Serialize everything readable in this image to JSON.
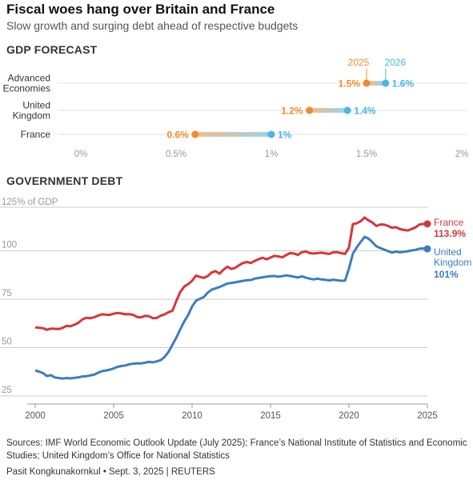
{
  "title": "Fiscal woes hang over Britain and France",
  "subtitle": "Slow growth and surging debt ahead of respective budgets",
  "colors": {
    "y2025": "#f08c2c",
    "y2026": "#4ab5e6",
    "france": "#d8353a",
    "uk": "#3b7dbf",
    "grid": "#cccccc",
    "axis": "#999999"
  },
  "chart_data": [
    {
      "type": "dumbbell",
      "title": "GDP FORECAST",
      "series_labels": [
        "2025",
        "2026"
      ],
      "categories": [
        "Advanced\nEconomies",
        "United\nKingdom",
        "France"
      ],
      "series": [
        {
          "name": "2025",
          "values": [
            1.5,
            1.2,
            0.6
          ]
        },
        {
          "name": "2026",
          "values": [
            1.6,
            1.4,
            1.0
          ]
        }
      ],
      "value_labels_2025": [
        "1.5%",
        "1.2%",
        "0.6%"
      ],
      "value_labels_2026": [
        "1.6%",
        "1.4%",
        "1%"
      ],
      "xlim": [
        0,
        2
      ],
      "x_ticks": [
        0,
        0.5,
        1,
        1.5,
        2
      ],
      "x_tick_labels": [
        "0%",
        "0.5%",
        "1%",
        "1.5%",
        "2%"
      ],
      "grid": true
    },
    {
      "type": "line",
      "title": "GOVERNMENT DEBT",
      "ylabel": "125% of GDP",
      "ylim": [
        25,
        125
      ],
      "xlim": [
        2000,
        2025
      ],
      "y_ticks": [
        25,
        50,
        75,
        100
      ],
      "y_tick_labels": [
        "25",
        "50",
        "75",
        "100"
      ],
      "x_ticks": [
        2000,
        2005,
        2010,
        2015,
        2020,
        2025
      ],
      "x_tick_labels": [
        "2000",
        "2005",
        "2010",
        "2015",
        "2020",
        "2025"
      ],
      "grid": true,
      "series": [
        {
          "name": "France",
          "end_label": "113.9%",
          "values": [
            [
              2000.0,
              60.5
            ],
            [
              2000.25,
              60.2
            ],
            [
              2000.5,
              60.0
            ],
            [
              2000.75,
              59.2
            ],
            [
              2001.0,
              59.8
            ],
            [
              2001.25,
              59.7
            ],
            [
              2001.5,
              59.6
            ],
            [
              2001.75,
              60.2
            ],
            [
              2002.0,
              61.2
            ],
            [
              2002.25,
              61.0
            ],
            [
              2002.5,
              61.8
            ],
            [
              2002.75,
              62.8
            ],
            [
              2003.0,
              64.5
            ],
            [
              2003.25,
              65.4
            ],
            [
              2003.5,
              65.2
            ],
            [
              2003.75,
              65.6
            ],
            [
              2004.0,
              66.5
            ],
            [
              2004.25,
              67.2
            ],
            [
              2004.5,
              67.0
            ],
            [
              2004.75,
              66.9
            ],
            [
              2005.0,
              67.5
            ],
            [
              2005.25,
              67.9
            ],
            [
              2005.5,
              67.6
            ],
            [
              2005.75,
              67.2
            ],
            [
              2006.0,
              67.3
            ],
            [
              2006.25,
              66.9
            ],
            [
              2006.5,
              65.8
            ],
            [
              2006.75,
              65.6
            ],
            [
              2007.0,
              66.4
            ],
            [
              2007.25,
              66.2
            ],
            [
              2007.5,
              65.2
            ],
            [
              2007.75,
              65.3
            ],
            [
              2008.0,
              66.5
            ],
            [
              2008.25,
              67.2
            ],
            [
              2008.5,
              68.3
            ],
            [
              2008.75,
              69.0
            ],
            [
              2009.0,
              74.2
            ],
            [
              2009.25,
              78.8
            ],
            [
              2009.5,
              81.5
            ],
            [
              2009.75,
              82.8
            ],
            [
              2010.0,
              84.5
            ],
            [
              2010.25,
              87.2
            ],
            [
              2010.5,
              86.5
            ],
            [
              2010.75,
              86.0
            ],
            [
              2011.0,
              87.0
            ],
            [
              2011.25,
              88.8
            ],
            [
              2011.5,
              89.5
            ],
            [
              2011.75,
              88.2
            ],
            [
              2012.0,
              90.2
            ],
            [
              2012.25,
              91.8
            ],
            [
              2012.5,
              90.6
            ],
            [
              2012.75,
              91.2
            ],
            [
              2013.0,
              92.5
            ],
            [
              2013.25,
              93.7
            ],
            [
              2013.5,
              94.2
            ],
            [
              2013.75,
              93.7
            ],
            [
              2014.0,
              94.8
            ],
            [
              2014.25,
              95.7
            ],
            [
              2014.5,
              96.4
            ],
            [
              2014.75,
              95.6
            ],
            [
              2015.0,
              96.5
            ],
            [
              2015.25,
              97.4
            ],
            [
              2015.5,
              97.1
            ],
            [
              2015.75,
              96.6
            ],
            [
              2016.0,
              97.8
            ],
            [
              2016.25,
              98.8
            ],
            [
              2016.5,
              98.6
            ],
            [
              2016.75,
              97.9
            ],
            [
              2017.0,
              99.3
            ],
            [
              2017.25,
              99.7
            ],
            [
              2017.5,
              98.8
            ],
            [
              2017.75,
              98.6
            ],
            [
              2018.0,
              98.8
            ],
            [
              2018.25,
              99.0
            ],
            [
              2018.5,
              98.7
            ],
            [
              2018.75,
              98.4
            ],
            [
              2019.0,
              99.2
            ],
            [
              2019.25,
              99.3
            ],
            [
              2019.5,
              98.8
            ],
            [
              2019.75,
              98.4
            ],
            [
              2020.0,
              101.6
            ],
            [
              2020.25,
              113.8
            ],
            [
              2020.5,
              114.2
            ],
            [
              2020.75,
              115.3
            ],
            [
              2021.0,
              117.2
            ],
            [
              2021.25,
              115.7
            ],
            [
              2021.5,
              114.6
            ],
            [
              2021.75,
              112.8
            ],
            [
              2022.0,
              113.6
            ],
            [
              2022.25,
              113.5
            ],
            [
              2022.5,
              112.8
            ],
            [
              2022.75,
              111.9
            ],
            [
              2023.0,
              112.2
            ],
            [
              2023.25,
              111.2
            ],
            [
              2023.5,
              110.8
            ],
            [
              2023.75,
              110.5
            ],
            [
              2024.0,
              111.3
            ],
            [
              2024.25,
              112.1
            ],
            [
              2024.5,
              113.6
            ],
            [
              2024.75,
              113.9
            ],
            [
              2025.0,
              113.9
            ]
          ]
        },
        {
          "name": "United\nKingdom",
          "end_label": "101%",
          "values": [
            [
              2000.0,
              38.2
            ],
            [
              2000.25,
              37.6
            ],
            [
              2000.5,
              36.8
            ],
            [
              2000.75,
              35.3
            ],
            [
              2001.0,
              35.8
            ],
            [
              2001.25,
              34.6
            ],
            [
              2001.5,
              34.3
            ],
            [
              2001.75,
              34.0
            ],
            [
              2002.0,
              34.3
            ],
            [
              2002.25,
              34.1
            ],
            [
              2002.5,
              34.4
            ],
            [
              2002.75,
              34.6
            ],
            [
              2003.0,
              35.1
            ],
            [
              2003.25,
              35.2
            ],
            [
              2003.5,
              35.6
            ],
            [
              2003.75,
              36.0
            ],
            [
              2004.0,
              37.0
            ],
            [
              2004.25,
              37.8
            ],
            [
              2004.5,
              38.2
            ],
            [
              2004.75,
              38.6
            ],
            [
              2005.0,
              39.2
            ],
            [
              2005.25,
              40.1
            ],
            [
              2005.5,
              40.5
            ],
            [
              2005.75,
              40.8
            ],
            [
              2006.0,
              41.4
            ],
            [
              2006.25,
              41.7
            ],
            [
              2006.5,
              41.9
            ],
            [
              2006.75,
              41.8
            ],
            [
              2007.0,
              42.2
            ],
            [
              2007.25,
              42.6
            ],
            [
              2007.5,
              42.4
            ],
            [
              2007.75,
              42.9
            ],
            [
              2008.0,
              43.5
            ],
            [
              2008.25,
              45.2
            ],
            [
              2008.5,
              47.8
            ],
            [
              2008.75,
              51.5
            ],
            [
              2009.0,
              55.2
            ],
            [
              2009.25,
              59.5
            ],
            [
              2009.5,
              63.5
            ],
            [
              2009.75,
              66.8
            ],
            [
              2010.0,
              71.2
            ],
            [
              2010.25,
              74.2
            ],
            [
              2010.5,
              75.2
            ],
            [
              2010.75,
              76.1
            ],
            [
              2011.0,
              78.4
            ],
            [
              2011.25,
              79.9
            ],
            [
              2011.5,
              80.6
            ],
            [
              2011.75,
              81.3
            ],
            [
              2012.0,
              82.2
            ],
            [
              2012.25,
              83.1
            ],
            [
              2012.5,
              83.4
            ],
            [
              2012.75,
              83.7
            ],
            [
              2013.0,
              84.1
            ],
            [
              2013.25,
              84.5
            ],
            [
              2013.5,
              84.8
            ],
            [
              2013.75,
              84.9
            ],
            [
              2014.0,
              85.6
            ],
            [
              2014.25,
              86.0
            ],
            [
              2014.5,
              86.3
            ],
            [
              2014.75,
              86.6
            ],
            [
              2015.0,
              86.9
            ],
            [
              2015.25,
              87.0
            ],
            [
              2015.5,
              86.6
            ],
            [
              2015.75,
              86.9
            ],
            [
              2016.0,
              87.3
            ],
            [
              2016.25,
              87.0
            ],
            [
              2016.5,
              86.6
            ],
            [
              2016.75,
              86.2
            ],
            [
              2017.0,
              86.8
            ],
            [
              2017.25,
              86.1
            ],
            [
              2017.5,
              85.6
            ],
            [
              2017.75,
              85.2
            ],
            [
              2018.0,
              85.6
            ],
            [
              2018.25,
              85.2
            ],
            [
              2018.5,
              85.0
            ],
            [
              2018.75,
              84.7
            ],
            [
              2019.0,
              85.1
            ],
            [
              2019.25,
              84.8
            ],
            [
              2019.5,
              84.5
            ],
            [
              2019.75,
              84.6
            ],
            [
              2020.0,
              90.8
            ],
            [
              2020.25,
              98.5
            ],
            [
              2020.5,
              101.8
            ],
            [
              2020.75,
              104.6
            ],
            [
              2021.0,
              107.2
            ],
            [
              2021.25,
              106.3
            ],
            [
              2021.5,
              104.4
            ],
            [
              2021.75,
              102.3
            ],
            [
              2022.0,
              101.4
            ],
            [
              2022.25,
              100.6
            ],
            [
              2022.5,
              99.8
            ],
            [
              2022.75,
              99.1
            ],
            [
              2023.0,
              99.6
            ],
            [
              2023.25,
              99.2
            ],
            [
              2023.5,
              99.5
            ],
            [
              2023.75,
              99.8
            ],
            [
              2024.0,
              100.2
            ],
            [
              2024.25,
              100.5
            ],
            [
              2024.5,
              101.1
            ],
            [
              2024.75,
              101.2
            ],
            [
              2025.0,
              101.0
            ]
          ]
        }
      ]
    }
  ],
  "sources": "Sources: IMF World Economic Outlook Update (July 2025); France’s National Institute of Statistics and Economic Studies; United Kingdom’s Office for National Statistics",
  "byline": "Pasit Kongkunakornkul • Sept. 3, 2025 | REUTERS"
}
